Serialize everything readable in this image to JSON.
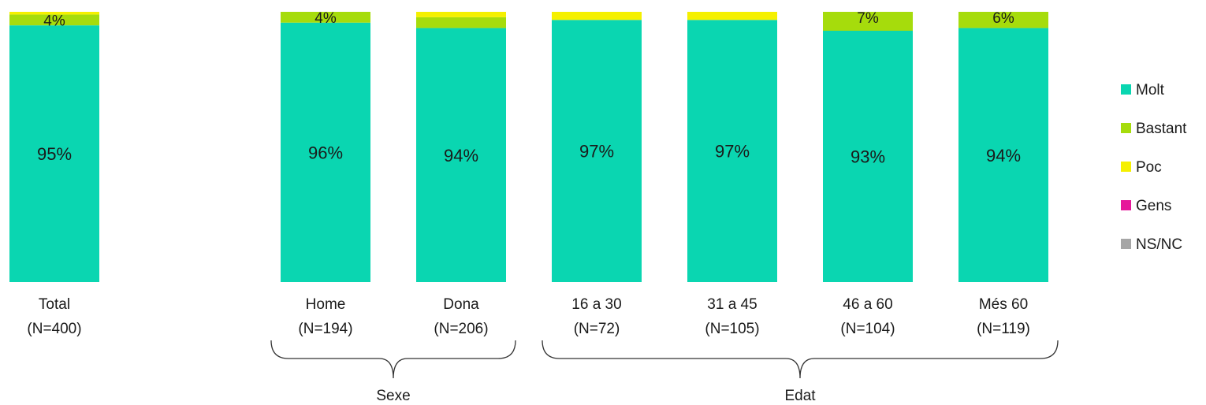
{
  "chart_data": {
    "type": "bar",
    "stacked": true,
    "percent_stacked": true,
    "categories": [
      {
        "label": "Total",
        "n": "(N=400)"
      },
      {
        "label": "Home",
        "n": "(N=194)"
      },
      {
        "label": "Dona",
        "n": "(N=206)"
      },
      {
        "label": "16 a 30",
        "n": "(N=72)"
      },
      {
        "label": "31 a 45",
        "n": "(N=105)"
      },
      {
        "label": "46 a 60",
        "n": "(N=104)"
      },
      {
        "label": "Més 60",
        "n": "(N=119)"
      }
    ],
    "series": [
      {
        "name": "Molt",
        "color": "#0AD6B1",
        "values": [
          95,
          96,
          94,
          97,
          97,
          93,
          94
        ],
        "labels": [
          "95%",
          "96%",
          "94%",
          "97%",
          "97%",
          "93%",
          "94%"
        ]
      },
      {
        "name": "Bastant",
        "color": "#A6DC0C",
        "values": [
          4,
          4,
          4,
          0,
          0,
          7,
          6
        ],
        "labels": [
          "4%",
          "4%",
          "",
          "",
          "",
          "7%",
          "6%"
        ]
      },
      {
        "name": "Poc",
        "color": "#F5F000",
        "values": [
          1,
          0,
          2,
          3,
          3,
          0,
          0
        ],
        "labels": [
          "",
          "",
          "",
          "",
          "",
          "",
          ""
        ]
      },
      {
        "name": "Gens",
        "color": "#E6179A",
        "values": [
          0,
          0,
          0,
          0,
          0,
          0,
          0
        ],
        "labels": [
          "",
          "",
          "",
          "",
          "",
          "",
          ""
        ]
      },
      {
        "name": "NS/NC",
        "color": "#A6A6A6",
        "values": [
          0,
          0,
          0,
          0,
          0,
          0,
          0
        ],
        "labels": [
          "",
          "",
          "",
          "",
          "",
          "",
          ""
        ]
      }
    ],
    "groups": [
      {
        "label": "Sexe",
        "from": 1,
        "to": 2
      },
      {
        "label": "Edat",
        "from": 3,
        "to": 6
      }
    ],
    "legend_position": "right",
    "ylim": [
      0,
      100
    ],
    "grid": false
  }
}
